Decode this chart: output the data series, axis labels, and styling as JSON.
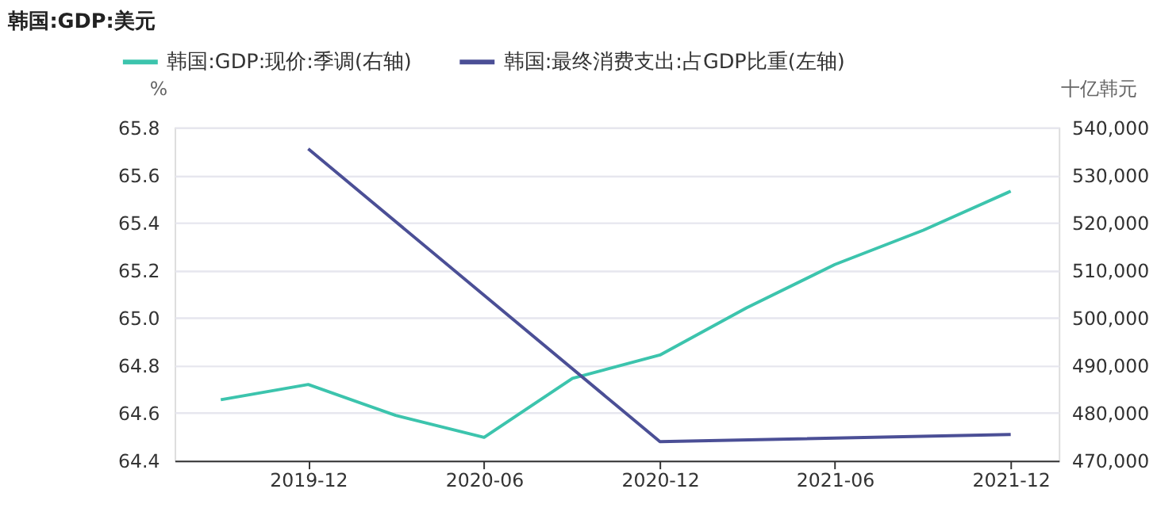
{
  "chart_data": {
    "type": "line",
    "title": "韩国:GDP:美元",
    "ylabel": "%",
    "y2label": "十亿韩元",
    "xlim": [
      "2019-07-15",
      "2022-01-20"
    ],
    "xticks": [
      {
        "value": "2019-12",
        "label": "2019-12"
      },
      {
        "value": "2020-06",
        "label": "2020-06"
      },
      {
        "value": "2020-12",
        "label": "2020-12"
      },
      {
        "value": "2021-06",
        "label": "2021-06"
      },
      {
        "value": "2021-12",
        "label": "2021-12"
      }
    ],
    "ylim": [
      64.4,
      65.8
    ],
    "yticks": [
      {
        "value": 64.4,
        "label": "64.4"
      },
      {
        "value": 64.6,
        "label": "64.6"
      },
      {
        "value": 64.8,
        "label": "64.8"
      },
      {
        "value": 65.0,
        "label": "65.0"
      },
      {
        "value": 65.2,
        "label": "65.2"
      },
      {
        "value": 65.4,
        "label": "65.4"
      },
      {
        "value": 65.6,
        "label": "65.6"
      },
      {
        "value": 65.8,
        "label": "65.8"
      }
    ],
    "y2lim": [
      470000,
      540000
    ],
    "y2ticks": [
      {
        "value": 470000,
        "label": "470,000"
      },
      {
        "value": 480000,
        "label": "480,000"
      },
      {
        "value": 490000,
        "label": "490,000"
      },
      {
        "value": 500000,
        "label": "500,000"
      },
      {
        "value": 510000,
        "label": "510,000"
      },
      {
        "value": 520000,
        "label": "520,000"
      },
      {
        "value": 530000,
        "label": "530,000"
      },
      {
        "value": 540000,
        "label": "540,000"
      }
    ],
    "grid": "y",
    "legend": "top left",
    "marker": "none",
    "line_style": "solid",
    "series": [
      {
        "name": "韩国:GDP:现价:季调(右轴)",
        "color": "#3cc4ad",
        "axis": "y2",
        "x": [
          "2019-09",
          "2019-12",
          "2020-03",
          "2020-06",
          "2020-09",
          "2020-12",
          "2021-03",
          "2021-06",
          "2021-09",
          "2021-12"
        ],
        "values": [
          482800,
          486000,
          479500,
          474900,
          487300,
          492200,
          502100,
          511200,
          518400,
          526600
        ]
      },
      {
        "name": "韩国:最终消费支出:占GDP比重(左轴)",
        "color": "#4b4f96",
        "axis": "y",
        "x": [
          "2019-12",
          "2020-12",
          "2021-12"
        ],
        "values": [
          65.71,
          64.48,
          64.51
        ]
      }
    ]
  }
}
